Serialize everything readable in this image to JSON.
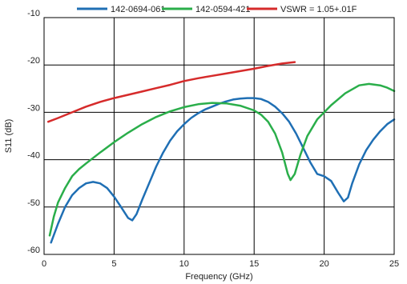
{
  "chart_data": {
    "type": "line",
    "title": "",
    "xlabel": "Frequency (GHz)",
    "ylabel": "S11 (dB)",
    "xlim": [
      0,
      25
    ],
    "ylim": [
      -60,
      -10
    ],
    "xticks": [
      0,
      5,
      10,
      15,
      20,
      25
    ],
    "yticks": [
      -10,
      -20,
      -30,
      -40,
      -50,
      -60
    ],
    "xtick_labels": [
      "0",
      "5",
      "10",
      "15",
      "20",
      "25"
    ],
    "ytick_labels": [
      "-10",
      "-20",
      "-30",
      "-40",
      "-50",
      "-60"
    ],
    "grid": true,
    "legend_position": "top",
    "series": [
      {
        "name": "142-0694-061",
        "color": "#1f6fb4",
        "points": [
          [
            0.5,
            -57.5
          ],
          [
            1,
            -53.5
          ],
          [
            1.5,
            -50
          ],
          [
            2,
            -47.5
          ],
          [
            2.5,
            -46
          ],
          [
            3,
            -45
          ],
          [
            3.5,
            -44.7
          ],
          [
            4,
            -45
          ],
          [
            4.5,
            -46
          ],
          [
            5,
            -47.8
          ],
          [
            5.5,
            -50
          ],
          [
            6,
            -52.3
          ],
          [
            6.3,
            -52.8
          ],
          [
            6.6,
            -51.5
          ],
          [
            7,
            -48.5
          ],
          [
            7.5,
            -45
          ],
          [
            8,
            -41.5
          ],
          [
            8.5,
            -38.5
          ],
          [
            9,
            -36
          ],
          [
            9.5,
            -34
          ],
          [
            10,
            -32.5
          ],
          [
            10.5,
            -31.2
          ],
          [
            11,
            -30.2
          ],
          [
            11.5,
            -29.4
          ],
          [
            12,
            -28.8
          ],
          [
            12.5,
            -28.2
          ],
          [
            13,
            -27.7
          ],
          [
            13.5,
            -27.3
          ],
          [
            14,
            -27.1
          ],
          [
            14.5,
            -27
          ],
          [
            15,
            -27
          ],
          [
            15.5,
            -27.2
          ],
          [
            16,
            -27.8
          ],
          [
            16.5,
            -28.8
          ],
          [
            17,
            -30.2
          ],
          [
            17.5,
            -32
          ],
          [
            18,
            -34.5
          ],
          [
            18.5,
            -37.5
          ],
          [
            19,
            -40.5
          ],
          [
            19.5,
            -43
          ],
          [
            20,
            -43.5
          ],
          [
            20.5,
            -44.5
          ],
          [
            21,
            -47
          ],
          [
            21.4,
            -48.8
          ],
          [
            21.7,
            -48
          ],
          [
            22,
            -45
          ],
          [
            22.5,
            -41
          ],
          [
            23,
            -38
          ],
          [
            23.5,
            -35.8
          ],
          [
            24,
            -34
          ],
          [
            24.5,
            -32.5
          ],
          [
            25,
            -31.5
          ]
        ]
      },
      {
        "name": "142-0594-421",
        "color": "#2aae4a",
        "points": [
          [
            0.4,
            -56
          ],
          [
            0.7,
            -52
          ],
          [
            1,
            -49
          ],
          [
            1.5,
            -46
          ],
          [
            2,
            -43.5
          ],
          [
            2.5,
            -42
          ],
          [
            3,
            -40.8
          ],
          [
            4,
            -38.5
          ],
          [
            5,
            -36.3
          ],
          [
            6,
            -34.3
          ],
          [
            7,
            -32.5
          ],
          [
            8,
            -31
          ],
          [
            9,
            -29.8
          ],
          [
            10,
            -28.9
          ],
          [
            11,
            -28.3
          ],
          [
            12,
            -28
          ],
          [
            13,
            -28.1
          ],
          [
            14,
            -28.6
          ],
          [
            15,
            -29.6
          ],
          [
            15.5,
            -30.5
          ],
          [
            16,
            -32
          ],
          [
            16.5,
            -34.5
          ],
          [
            17,
            -38.5
          ],
          [
            17.4,
            -43
          ],
          [
            17.6,
            -44.3
          ],
          [
            17.9,
            -43
          ],
          [
            18.3,
            -39
          ],
          [
            18.8,
            -35
          ],
          [
            19.5,
            -31.5
          ],
          [
            20.5,
            -28.5
          ],
          [
            21.5,
            -26
          ],
          [
            22.5,
            -24.3
          ],
          [
            23.2,
            -24
          ],
          [
            24,
            -24.3
          ],
          [
            24.5,
            -24.8
          ],
          [
            25,
            -25.5
          ]
        ]
      },
      {
        "name": "VSWR = 1.05+.01F",
        "color": "#d62b2b",
        "points": [
          [
            0.3,
            -32
          ],
          [
            1,
            -31.2
          ],
          [
            2,
            -30
          ],
          [
            3,
            -28.8
          ],
          [
            4,
            -27.8
          ],
          [
            5,
            -27
          ],
          [
            6,
            -26.3
          ],
          [
            7,
            -25.6
          ],
          [
            8,
            -24.9
          ],
          [
            9,
            -24.2
          ],
          [
            10,
            -23.4
          ],
          [
            11,
            -22.8
          ],
          [
            12,
            -22.3
          ],
          [
            13,
            -21.8
          ],
          [
            14,
            -21.3
          ],
          [
            15,
            -20.8
          ],
          [
            16,
            -20.2
          ],
          [
            17,
            -19.7
          ],
          [
            17.9,
            -19.4
          ]
        ]
      }
    ]
  }
}
